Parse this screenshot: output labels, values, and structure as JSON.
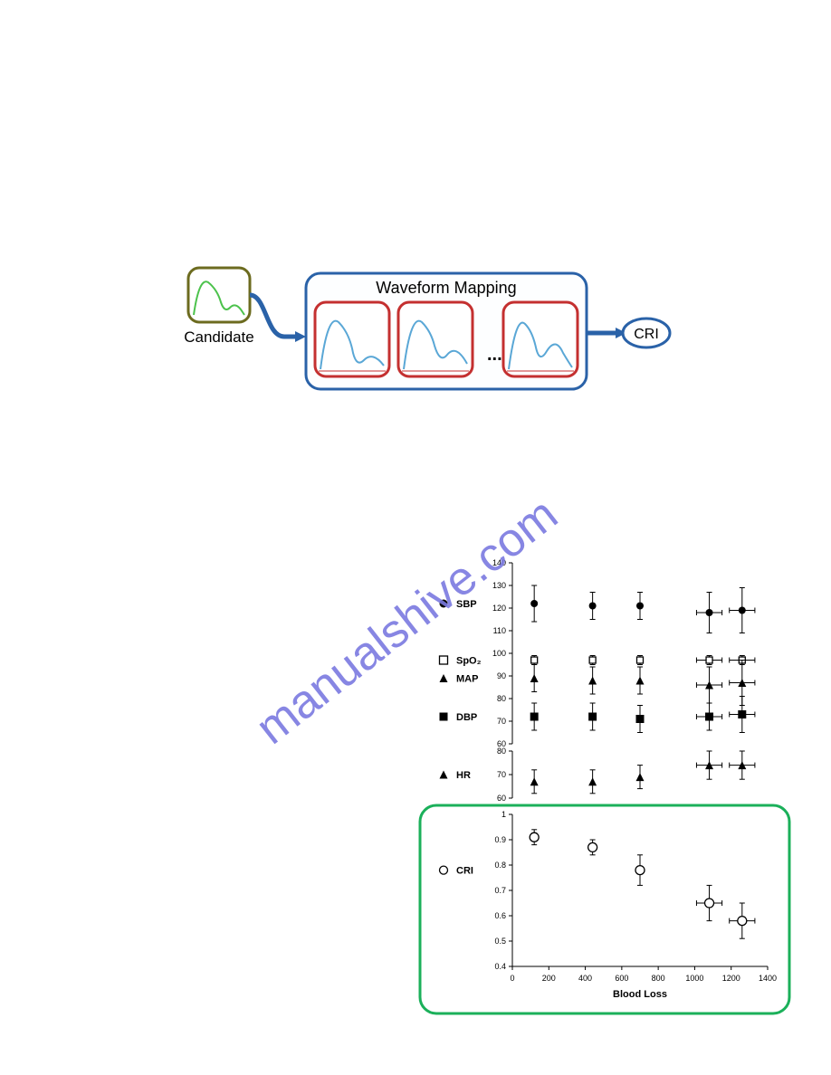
{
  "watermark": {
    "text": "manualshive.com",
    "color": "#7b7ae0",
    "fontsize": 52,
    "rotation_deg": -38
  },
  "flow_diagram": {
    "candidate_label": "Candidate",
    "mapping_label": "Waveform Mapping",
    "output_label": "CRI",
    "candidate_stroke": "#6c6b1f",
    "candidate_wave_color": "#4cc24c",
    "mapping_stroke": "#2a62a8",
    "cell_stroke": "#c43030",
    "wave_color": "#5aa7d6",
    "arrow_color": "#2a62a8",
    "output_stroke": "#2a62a8",
    "ellipsis": "..."
  },
  "scatter": {
    "type": "scatter",
    "series": [
      {
        "key": "SBP",
        "marker": "circle_filled"
      },
      {
        "key": "SpO2",
        "marker": "square_open",
        "display": "SpO₂"
      },
      {
        "key": "MAP",
        "marker": "triangle_filled"
      },
      {
        "key": "DBP",
        "marker": "square_filled"
      },
      {
        "key": "HR",
        "marker": "triangle_filled"
      },
      {
        "key": "CRI",
        "marker": "circle_open"
      }
    ],
    "panels": {
      "top": {
        "ylim": [
          60,
          140
        ],
        "yticks": [
          60,
          70,
          80,
          90,
          100,
          110,
          120,
          130,
          140
        ],
        "points": {
          "SBP": [
            {
              "x": 120,
              "y": 122,
              "ey": 8,
              "ex": 0
            },
            {
              "x": 440,
              "y": 121,
              "ey": 6,
              "ex": 0
            },
            {
              "x": 700,
              "y": 121,
              "ey": 6,
              "ex": 0
            },
            {
              "x": 1080,
              "y": 118,
              "ey": 9,
              "ex": 70
            },
            {
              "x": 1260,
              "y": 119,
              "ey": 10,
              "ex": 70
            }
          ],
          "SpO2": [
            {
              "x": 120,
              "y": 97,
              "ey": 2,
              "ex": 0
            },
            {
              "x": 440,
              "y": 97,
              "ey": 2,
              "ex": 0
            },
            {
              "x": 700,
              "y": 97,
              "ey": 2,
              "ex": 0
            },
            {
              "x": 1080,
              "y": 97,
              "ey": 2,
              "ex": 70
            },
            {
              "x": 1260,
              "y": 97,
              "ey": 2,
              "ex": 70
            }
          ],
          "MAP": [
            {
              "x": 120,
              "y": 89,
              "ey": 6,
              "ex": 0
            },
            {
              "x": 440,
              "y": 88,
              "ey": 6,
              "ex": 0
            },
            {
              "x": 700,
              "y": 88,
              "ey": 6,
              "ex": 0
            },
            {
              "x": 1080,
              "y": 86,
              "ey": 8,
              "ex": 70
            },
            {
              "x": 1260,
              "y": 87,
              "ey": 10,
              "ex": 70
            }
          ],
          "DBP": [
            {
              "x": 120,
              "y": 72,
              "ey": 6,
              "ex": 0
            },
            {
              "x": 440,
              "y": 72,
              "ey": 6,
              "ex": 0
            },
            {
              "x": 700,
              "y": 71,
              "ey": 6,
              "ex": 0
            },
            {
              "x": 1080,
              "y": 72,
              "ey": 6,
              "ex": 70
            },
            {
              "x": 1260,
              "y": 73,
              "ey": 8,
              "ex": 70
            }
          ]
        }
      },
      "hr": {
        "ylim": [
          60,
          80
        ],
        "yticks": [
          60,
          70,
          80
        ],
        "points": {
          "HR": [
            {
              "x": 120,
              "y": 67,
              "ey": 5,
              "ex": 0
            },
            {
              "x": 440,
              "y": 67,
              "ey": 5,
              "ex": 0
            },
            {
              "x": 700,
              "y": 69,
              "ey": 5,
              "ex": 0
            },
            {
              "x": 1080,
              "y": 74,
              "ey": 6,
              "ex": 70
            },
            {
              "x": 1260,
              "y": 74,
              "ey": 6,
              "ex": 70
            }
          ]
        }
      },
      "cri": {
        "ylim": [
          0.4,
          1.0
        ],
        "yticks": [
          0.4,
          0.5,
          0.6,
          0.7,
          0.8,
          0.9,
          1.0
        ],
        "points": {
          "CRI": [
            {
              "x": 120,
              "y": 0.91,
              "ey": 0.03,
              "ex": 0
            },
            {
              "x": 440,
              "y": 0.87,
              "ey": 0.03,
              "ex": 0
            },
            {
              "x": 700,
              "y": 0.78,
              "ey": 0.06,
              "ex": 0
            },
            {
              "x": 1080,
              "y": 0.65,
              "ey": 0.07,
              "ex": 70
            },
            {
              "x": 1260,
              "y": 0.58,
              "ey": 0.07,
              "ex": 70
            }
          ]
        }
      }
    },
    "xlim": [
      0,
      1400
    ],
    "xticks": [
      0,
      200,
      400,
      600,
      800,
      1000,
      1200,
      1400
    ],
    "xlabel": "Blood Loss",
    "stroke_color": "#000000",
    "label_fontsize": 11,
    "tick_fontsize": 9,
    "highlight_stroke": "#1bb05a",
    "highlight_stroke_width": 3,
    "background": "#ffffff"
  }
}
